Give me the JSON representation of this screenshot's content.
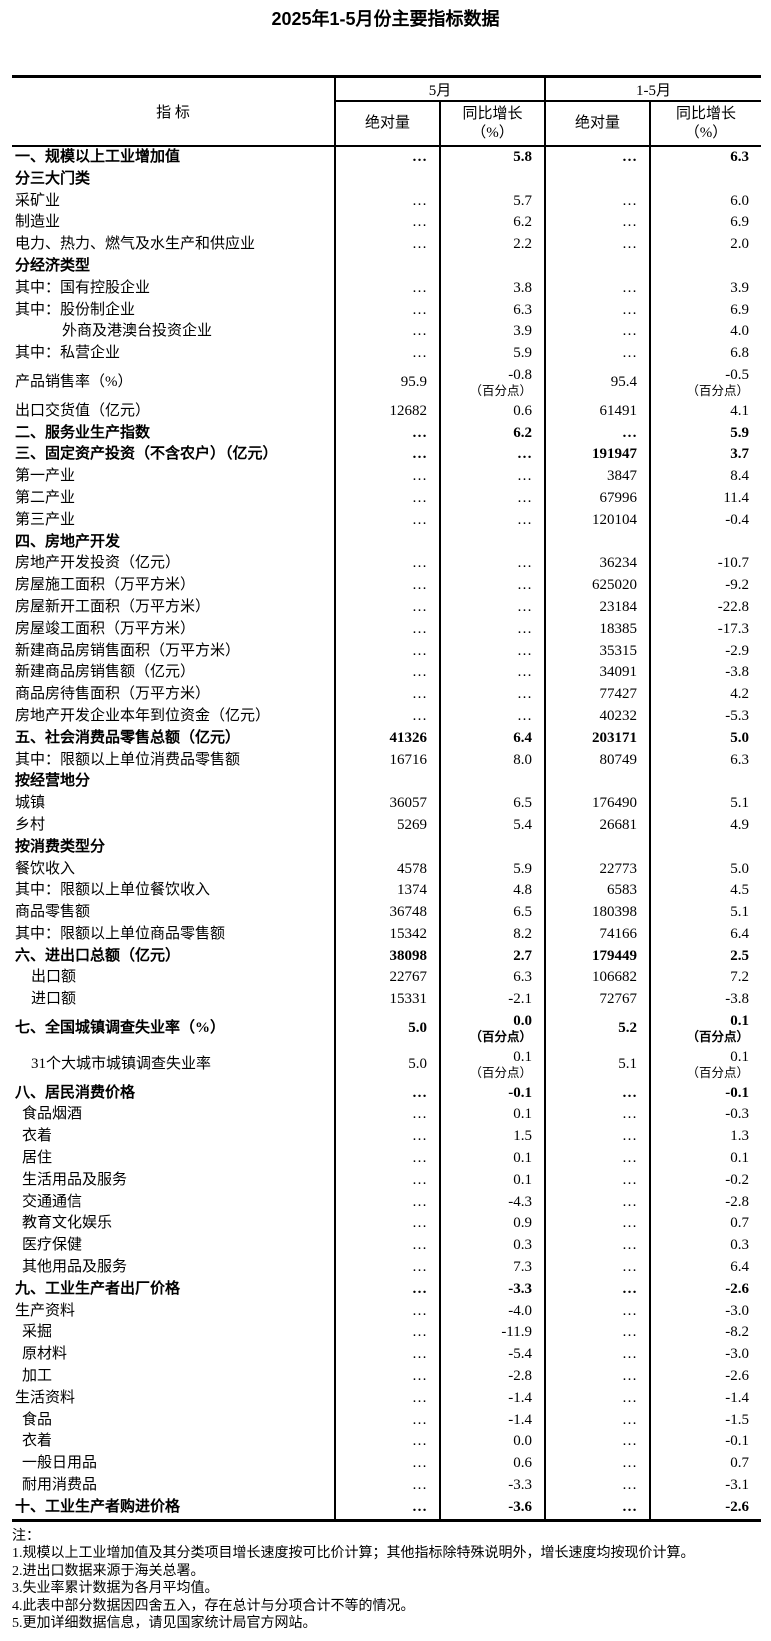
{
  "page_title": "2025年1-5月份主要指标数据",
  "table": {
    "columns": {
      "indicator": "指  标",
      "group_may": "5月",
      "group_jan_may": "1-5月",
      "absolute": "绝对量",
      "yoy_growth_line1": "同比增长",
      "yoy_growth_line2": "（%）"
    },
    "rows": [
      {
        "label": "一、规模以上工业增加值",
        "indent": 0,
        "bold": true,
        "may_abs": "…",
        "may_growth": "5.8",
        "cum_abs": "…",
        "cum_growth": "6.3"
      },
      {
        "label": "分三大门类",
        "indent": 0,
        "bold": true,
        "may_abs": "",
        "may_growth": "",
        "cum_abs": "",
        "cum_growth": ""
      },
      {
        "label": "采矿业",
        "indent": 0,
        "bold": false,
        "may_abs": "…",
        "may_growth": "5.7",
        "cum_abs": "…",
        "cum_growth": "6.0"
      },
      {
        "label": "制造业",
        "indent": 0,
        "bold": false,
        "may_abs": "…",
        "may_growth": "6.2",
        "cum_abs": "…",
        "cum_growth": "6.9"
      },
      {
        "label": "电力、热力、燃气及水生产和供应业",
        "indent": 0,
        "bold": false,
        "may_abs": "…",
        "may_growth": "2.2",
        "cum_abs": "…",
        "cum_growth": "2.0"
      },
      {
        "label": "分经济类型",
        "indent": 0,
        "bold": true,
        "may_abs": "",
        "may_growth": "",
        "cum_abs": "",
        "cum_growth": ""
      },
      {
        "label": "其中：国有控股企业",
        "indent": 0,
        "bold": false,
        "may_abs": "…",
        "may_growth": "3.8",
        "cum_abs": "…",
        "cum_growth": "3.9"
      },
      {
        "label": "其中：股份制企业",
        "indent": 0,
        "bold": false,
        "may_abs": "…",
        "may_growth": "6.3",
        "cum_abs": "…",
        "cum_growth": "6.9"
      },
      {
        "label": "外商及港澳台投资企业",
        "indent": 3,
        "bold": false,
        "may_abs": "…",
        "may_growth": "3.9",
        "cum_abs": "…",
        "cum_growth": "4.0"
      },
      {
        "label": "其中：私营企业",
        "indent": 0,
        "bold": false,
        "may_abs": "…",
        "may_growth": "5.9",
        "cum_abs": "…",
        "cum_growth": "6.8"
      },
      {
        "label": "产品销售率（%）",
        "indent": 0,
        "bold": false,
        "may_abs": "95.9",
        "may_growth": "-0.8",
        "cum_abs": "95.4",
        "cum_growth": "-0.5",
        "growth_note": "（百分点）"
      },
      {
        "label": "出口交货值（亿元）",
        "indent": 0,
        "bold": false,
        "may_abs": "12682",
        "may_growth": "0.6",
        "cum_abs": "61491",
        "cum_growth": "4.1"
      },
      {
        "label": "二、服务业生产指数",
        "indent": 0,
        "bold": true,
        "may_abs": "…",
        "may_growth": "6.2",
        "cum_abs": "…",
        "cum_growth": "5.9"
      },
      {
        "label": "三、固定资产投资（不含农户）（亿元）",
        "indent": 0,
        "bold": true,
        "may_abs": "…",
        "may_growth": "…",
        "cum_abs": "191947",
        "cum_growth": "3.7"
      },
      {
        "label": "第一产业",
        "indent": 0,
        "bold": false,
        "may_abs": "…",
        "may_growth": "…",
        "cum_abs": "3847",
        "cum_growth": "8.4"
      },
      {
        "label": "第二产业",
        "indent": 0,
        "bold": false,
        "may_abs": "…",
        "may_growth": "…",
        "cum_abs": "67996",
        "cum_growth": "11.4"
      },
      {
        "label": "第三产业",
        "indent": 0,
        "bold": false,
        "may_abs": "…",
        "may_growth": "…",
        "cum_abs": "120104",
        "cum_growth": "-0.4"
      },
      {
        "label": "四、房地产开发",
        "indent": 0,
        "bold": true,
        "may_abs": "",
        "may_growth": "",
        "cum_abs": "",
        "cum_growth": ""
      },
      {
        "label": "房地产开发投资（亿元）",
        "indent": 0,
        "bold": false,
        "may_abs": "…",
        "may_growth": "…",
        "cum_abs": "36234",
        "cum_growth": "-10.7"
      },
      {
        "label": "房屋施工面积（万平方米）",
        "indent": 0,
        "bold": false,
        "may_abs": "…",
        "may_growth": "…",
        "cum_abs": "625020",
        "cum_growth": "-9.2"
      },
      {
        "label": "房屋新开工面积（万平方米）",
        "indent": 0,
        "bold": false,
        "may_abs": "…",
        "may_growth": "…",
        "cum_abs": "23184",
        "cum_growth": "-22.8"
      },
      {
        "label": "房屋竣工面积（万平方米）",
        "indent": 0,
        "bold": false,
        "may_abs": "…",
        "may_growth": "…",
        "cum_abs": "18385",
        "cum_growth": "-17.3"
      },
      {
        "label": "新建商品房销售面积（万平方米）",
        "indent": 0,
        "bold": false,
        "may_abs": "…",
        "may_growth": "…",
        "cum_abs": "35315",
        "cum_growth": "-2.9"
      },
      {
        "label": "新建商品房销售额（亿元）",
        "indent": 0,
        "bold": false,
        "may_abs": "…",
        "may_growth": "…",
        "cum_abs": "34091",
        "cum_growth": "-3.8"
      },
      {
        "label": "商品房待售面积（万平方米）",
        "indent": 0,
        "bold": false,
        "may_abs": "…",
        "may_growth": "…",
        "cum_abs": "77427",
        "cum_growth": "4.2"
      },
      {
        "label": "房地产开发企业本年到位资金（亿元）",
        "indent": 0,
        "bold": false,
        "may_abs": "…",
        "may_growth": "…",
        "cum_abs": "40232",
        "cum_growth": "-5.3"
      },
      {
        "label": "五、社会消费品零售总额（亿元）",
        "indent": 0,
        "bold": true,
        "may_abs": "41326",
        "may_growth": "6.4",
        "cum_abs": "203171",
        "cum_growth": "5.0"
      },
      {
        "label": "其中：限额以上单位消费品零售额",
        "indent": 0,
        "bold": false,
        "may_abs": "16716",
        "may_growth": "8.0",
        "cum_abs": "80749",
        "cum_growth": "6.3"
      },
      {
        "label": "按经营地分",
        "indent": 0,
        "bold": true,
        "may_abs": "",
        "may_growth": "",
        "cum_abs": "",
        "cum_growth": ""
      },
      {
        "label": "城镇",
        "indent": 0,
        "bold": false,
        "may_abs": "36057",
        "may_growth": "6.5",
        "cum_abs": "176490",
        "cum_growth": "5.1"
      },
      {
        "label": "乡村",
        "indent": 0,
        "bold": false,
        "may_abs": "5269",
        "may_growth": "5.4",
        "cum_abs": "26681",
        "cum_growth": "4.9"
      },
      {
        "label": "按消费类型分",
        "indent": 0,
        "bold": true,
        "may_abs": "",
        "may_growth": "",
        "cum_abs": "",
        "cum_growth": ""
      },
      {
        "label": "餐饮收入",
        "indent": 0,
        "bold": false,
        "may_abs": "4578",
        "may_growth": "5.9",
        "cum_abs": "22773",
        "cum_growth": "5.0"
      },
      {
        "label": "其中：限额以上单位餐饮收入",
        "indent": 0,
        "bold": false,
        "may_abs": "1374",
        "may_growth": "4.8",
        "cum_abs": "6583",
        "cum_growth": "4.5"
      },
      {
        "label": "商品零售额",
        "indent": 0,
        "bold": false,
        "may_abs": "36748",
        "may_growth": "6.5",
        "cum_abs": "180398",
        "cum_growth": "5.1"
      },
      {
        "label": "其中：限额以上单位商品零售额",
        "indent": 0,
        "bold": false,
        "may_abs": "15342",
        "may_growth": "8.2",
        "cum_abs": "74166",
        "cum_growth": "6.4"
      },
      {
        "label": "六、进出口总额（亿元）",
        "indent": 0,
        "bold": true,
        "may_abs": "38098",
        "may_growth": "2.7",
        "cum_abs": "179449",
        "cum_growth": "2.5"
      },
      {
        "label": "出口额",
        "indent": 2,
        "bold": false,
        "may_abs": "22767",
        "may_growth": "6.3",
        "cum_abs": "106682",
        "cum_growth": "7.2"
      },
      {
        "label": "进口额",
        "indent": 2,
        "bold": false,
        "may_abs": "15331",
        "may_growth": "-2.1",
        "cum_abs": "72767",
        "cum_growth": "-3.8"
      },
      {
        "label": "七、全国城镇调查失业率（%）",
        "indent": 0,
        "bold": true,
        "may_abs": "5.0",
        "may_growth": "0.0",
        "cum_abs": "5.2",
        "cum_growth": "0.1",
        "growth_note": "（百分点）"
      },
      {
        "label": "31个大城市城镇调查失业率",
        "indent": 2,
        "bold": false,
        "may_abs": "5.0",
        "may_growth": "0.1",
        "cum_abs": "5.1",
        "cum_growth": "0.1",
        "growth_note": "（百分点）"
      },
      {
        "label": "八、居民消费价格",
        "indent": 0,
        "bold": true,
        "may_abs": "…",
        "may_growth": "-0.1",
        "cum_abs": "…",
        "cum_growth": "-0.1"
      },
      {
        "label": "食品烟酒",
        "indent": 1,
        "bold": false,
        "may_abs": "…",
        "may_growth": "0.1",
        "cum_abs": "…",
        "cum_growth": "-0.3"
      },
      {
        "label": "衣着",
        "indent": 1,
        "bold": false,
        "may_abs": "…",
        "may_growth": "1.5",
        "cum_abs": "…",
        "cum_growth": "1.3"
      },
      {
        "label": "居住",
        "indent": 1,
        "bold": false,
        "may_abs": "…",
        "may_growth": "0.1",
        "cum_abs": "…",
        "cum_growth": "0.1"
      },
      {
        "label": "生活用品及服务",
        "indent": 1,
        "bold": false,
        "may_abs": "…",
        "may_growth": "0.1",
        "cum_abs": "…",
        "cum_growth": "-0.2"
      },
      {
        "label": "交通通信",
        "indent": 1,
        "bold": false,
        "may_abs": "…",
        "may_growth": "-4.3",
        "cum_abs": "…",
        "cum_growth": "-2.8"
      },
      {
        "label": "教育文化娱乐",
        "indent": 1,
        "bold": false,
        "may_abs": "…",
        "may_growth": "0.9",
        "cum_abs": "…",
        "cum_growth": "0.7"
      },
      {
        "label": "医疗保健",
        "indent": 1,
        "bold": false,
        "may_abs": "…",
        "may_growth": "0.3",
        "cum_abs": "…",
        "cum_growth": "0.3"
      },
      {
        "label": "其他用品及服务",
        "indent": 1,
        "bold": false,
        "may_abs": "…",
        "may_growth": "7.3",
        "cum_abs": "…",
        "cum_growth": "6.4"
      },
      {
        "label": "九、工业生产者出厂价格",
        "indent": 0,
        "bold": true,
        "may_abs": "…",
        "may_growth": "-3.3",
        "cum_abs": "…",
        "cum_growth": "-2.6"
      },
      {
        "label": "生产资料",
        "indent": 0,
        "bold": false,
        "may_abs": "…",
        "may_growth": "-4.0",
        "cum_abs": "…",
        "cum_growth": "-3.0"
      },
      {
        "label": "采掘",
        "indent": 1,
        "bold": false,
        "may_abs": "…",
        "may_growth": "-11.9",
        "cum_abs": "…",
        "cum_growth": "-8.2"
      },
      {
        "label": "原材料",
        "indent": 1,
        "bold": false,
        "may_abs": "…",
        "may_growth": "-5.4",
        "cum_abs": "…",
        "cum_growth": "-3.0"
      },
      {
        "label": "加工",
        "indent": 1,
        "bold": false,
        "may_abs": "…",
        "may_growth": "-2.8",
        "cum_abs": "…",
        "cum_growth": "-2.6"
      },
      {
        "label": "生活资料",
        "indent": 0,
        "bold": false,
        "may_abs": "…",
        "may_growth": "-1.4",
        "cum_abs": "…",
        "cum_growth": "-1.4"
      },
      {
        "label": "食品",
        "indent": 1,
        "bold": false,
        "may_abs": "…",
        "may_growth": "-1.4",
        "cum_abs": "…",
        "cum_growth": "-1.5"
      },
      {
        "label": "衣着",
        "indent": 1,
        "bold": false,
        "may_abs": "…",
        "may_growth": "0.0",
        "cum_abs": "…",
        "cum_growth": "-0.1"
      },
      {
        "label": "一般日用品",
        "indent": 1,
        "bold": false,
        "may_abs": "…",
        "may_growth": "0.6",
        "cum_abs": "…",
        "cum_growth": "0.7"
      },
      {
        "label": "耐用消费品",
        "indent": 1,
        "bold": false,
        "may_abs": "…",
        "may_growth": "-3.3",
        "cum_abs": "…",
        "cum_growth": "-3.1"
      },
      {
        "label": "十、工业生产者购进价格",
        "indent": 0,
        "bold": true,
        "may_abs": "…",
        "may_growth": "-3.6",
        "cum_abs": "…",
        "cum_growth": "-2.6"
      }
    ]
  },
  "notes": {
    "heading": "注：",
    "items": [
      "1.规模以上工业增加值及其分类项目增长速度按可比价计算；其他指标除特殊说明外，增长速度均按现价计算。",
      "2.进出口数据来源于海关总署。",
      "3.失业率累计数据为各月平均值。",
      "4.此表中部分数据因四舍五入，存在总计与分项合计不等的情况。",
      "5.更加详细数据信息，请见国家统计局官方网站。"
    ]
  }
}
